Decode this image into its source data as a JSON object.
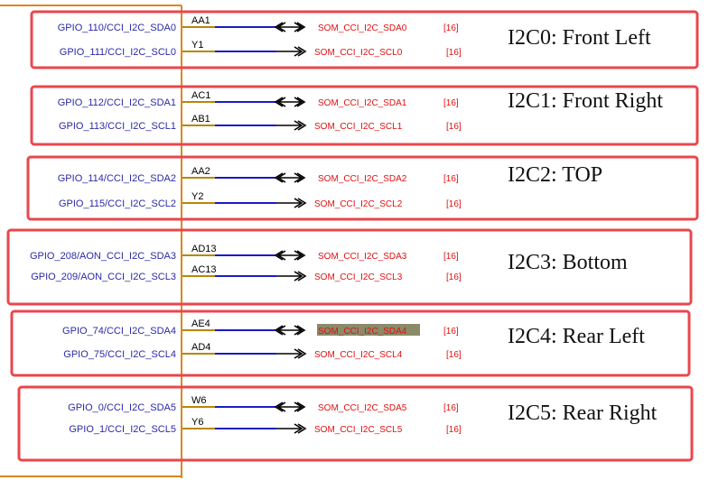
{
  "colors": {
    "group_border": "#e8474c",
    "ic_border": "#d9891f",
    "pin_stub": "#b8860b",
    "wire": "#1a1ac8",
    "pin_text": "#2a2aa8",
    "net_text": "#e01010",
    "highlight": "#8b8b6a"
  },
  "groups": [
    {
      "title": "I2C0: Front Left",
      "signals": [
        {
          "pin": "GPIO_110/CCI_I2C_SDA0",
          "ball": "AA1",
          "net": "SOM_CCI_I2C_SDA0",
          "ref": "[16]",
          "arrow": "bidirectional",
          "highlight": false
        },
        {
          "pin": "GPIO_111/CCI_I2C_SCL0",
          "ball": "Y1",
          "net": "SOM_CCI_I2C_SCL0",
          "ref": "[16]",
          "arrow": "output",
          "highlight": false
        }
      ]
    },
    {
      "title": "I2C1: Front Right",
      "signals": [
        {
          "pin": "GPIO_112/CCI_I2C_SDA1",
          "ball": "AC1",
          "net": "SOM_CCI_I2C_SDA1",
          "ref": "[16]",
          "arrow": "bidirectional",
          "highlight": false
        },
        {
          "pin": "GPIO_113/CCI_I2C_SCL1",
          "ball": "AB1",
          "net": "SOM_CCI_I2C_SCL1",
          "ref": "[16]",
          "arrow": "output",
          "highlight": false
        }
      ]
    },
    {
      "title": "I2C2: TOP",
      "signals": [
        {
          "pin": "GPIO_114/CCI_I2C_SDA2",
          "ball": "AA2",
          "net": "SOM_CCI_I2C_SDA2",
          "ref": "[16]",
          "arrow": "bidirectional",
          "highlight": false
        },
        {
          "pin": "GPIO_115/CCI_I2C_SCL2",
          "ball": "Y2",
          "net": "SOM_CCI_I2C_SCL2",
          "ref": "[16]",
          "arrow": "output",
          "highlight": false
        }
      ]
    },
    {
      "title": "I2C3: Bottom",
      "signals": [
        {
          "pin": "GPIO_208/AON_CCI_I2C_SDA3",
          "ball": "AD13",
          "net": "SOM_CCI_I2C_SDA3",
          "ref": "[16]",
          "arrow": "bidirectional",
          "highlight": false
        },
        {
          "pin": "GPIO_209/AON_CCI_I2C_SCL3",
          "ball": "AC13",
          "net": "SOM_CCI_I2C_SCL3",
          "ref": "[16]",
          "arrow": "output",
          "highlight": false
        }
      ]
    },
    {
      "title": "I2C4: Rear Left",
      "signals": [
        {
          "pin": "GPIO_74/CCI_I2C_SDA4",
          "ball": "AE4",
          "net": "SOM_CCI_I2C_SDA4",
          "ref": "[16]",
          "arrow": "bidirectional",
          "highlight": true
        },
        {
          "pin": "GPIO_75/CCI_I2C_SCL4",
          "ball": "AD4",
          "net": "SOM_CCI_I2C_SCL4",
          "ref": "[16]",
          "arrow": "output",
          "highlight": false
        }
      ]
    },
    {
      "title": "I2C5: Rear Right",
      "signals": [
        {
          "pin": "GPIO_0/CCI_I2C_SDA5",
          "ball": "W6",
          "net": "SOM_CCI_I2C_SDA5",
          "ref": "[16]",
          "arrow": "bidirectional",
          "highlight": false
        },
        {
          "pin": "GPIO_1/CCI_I2C_SCL5",
          "ball": "Y6",
          "net": "SOM_CCI_I2C_SCL5",
          "ref": "[16]",
          "arrow": "output",
          "highlight": false
        }
      ]
    }
  ]
}
